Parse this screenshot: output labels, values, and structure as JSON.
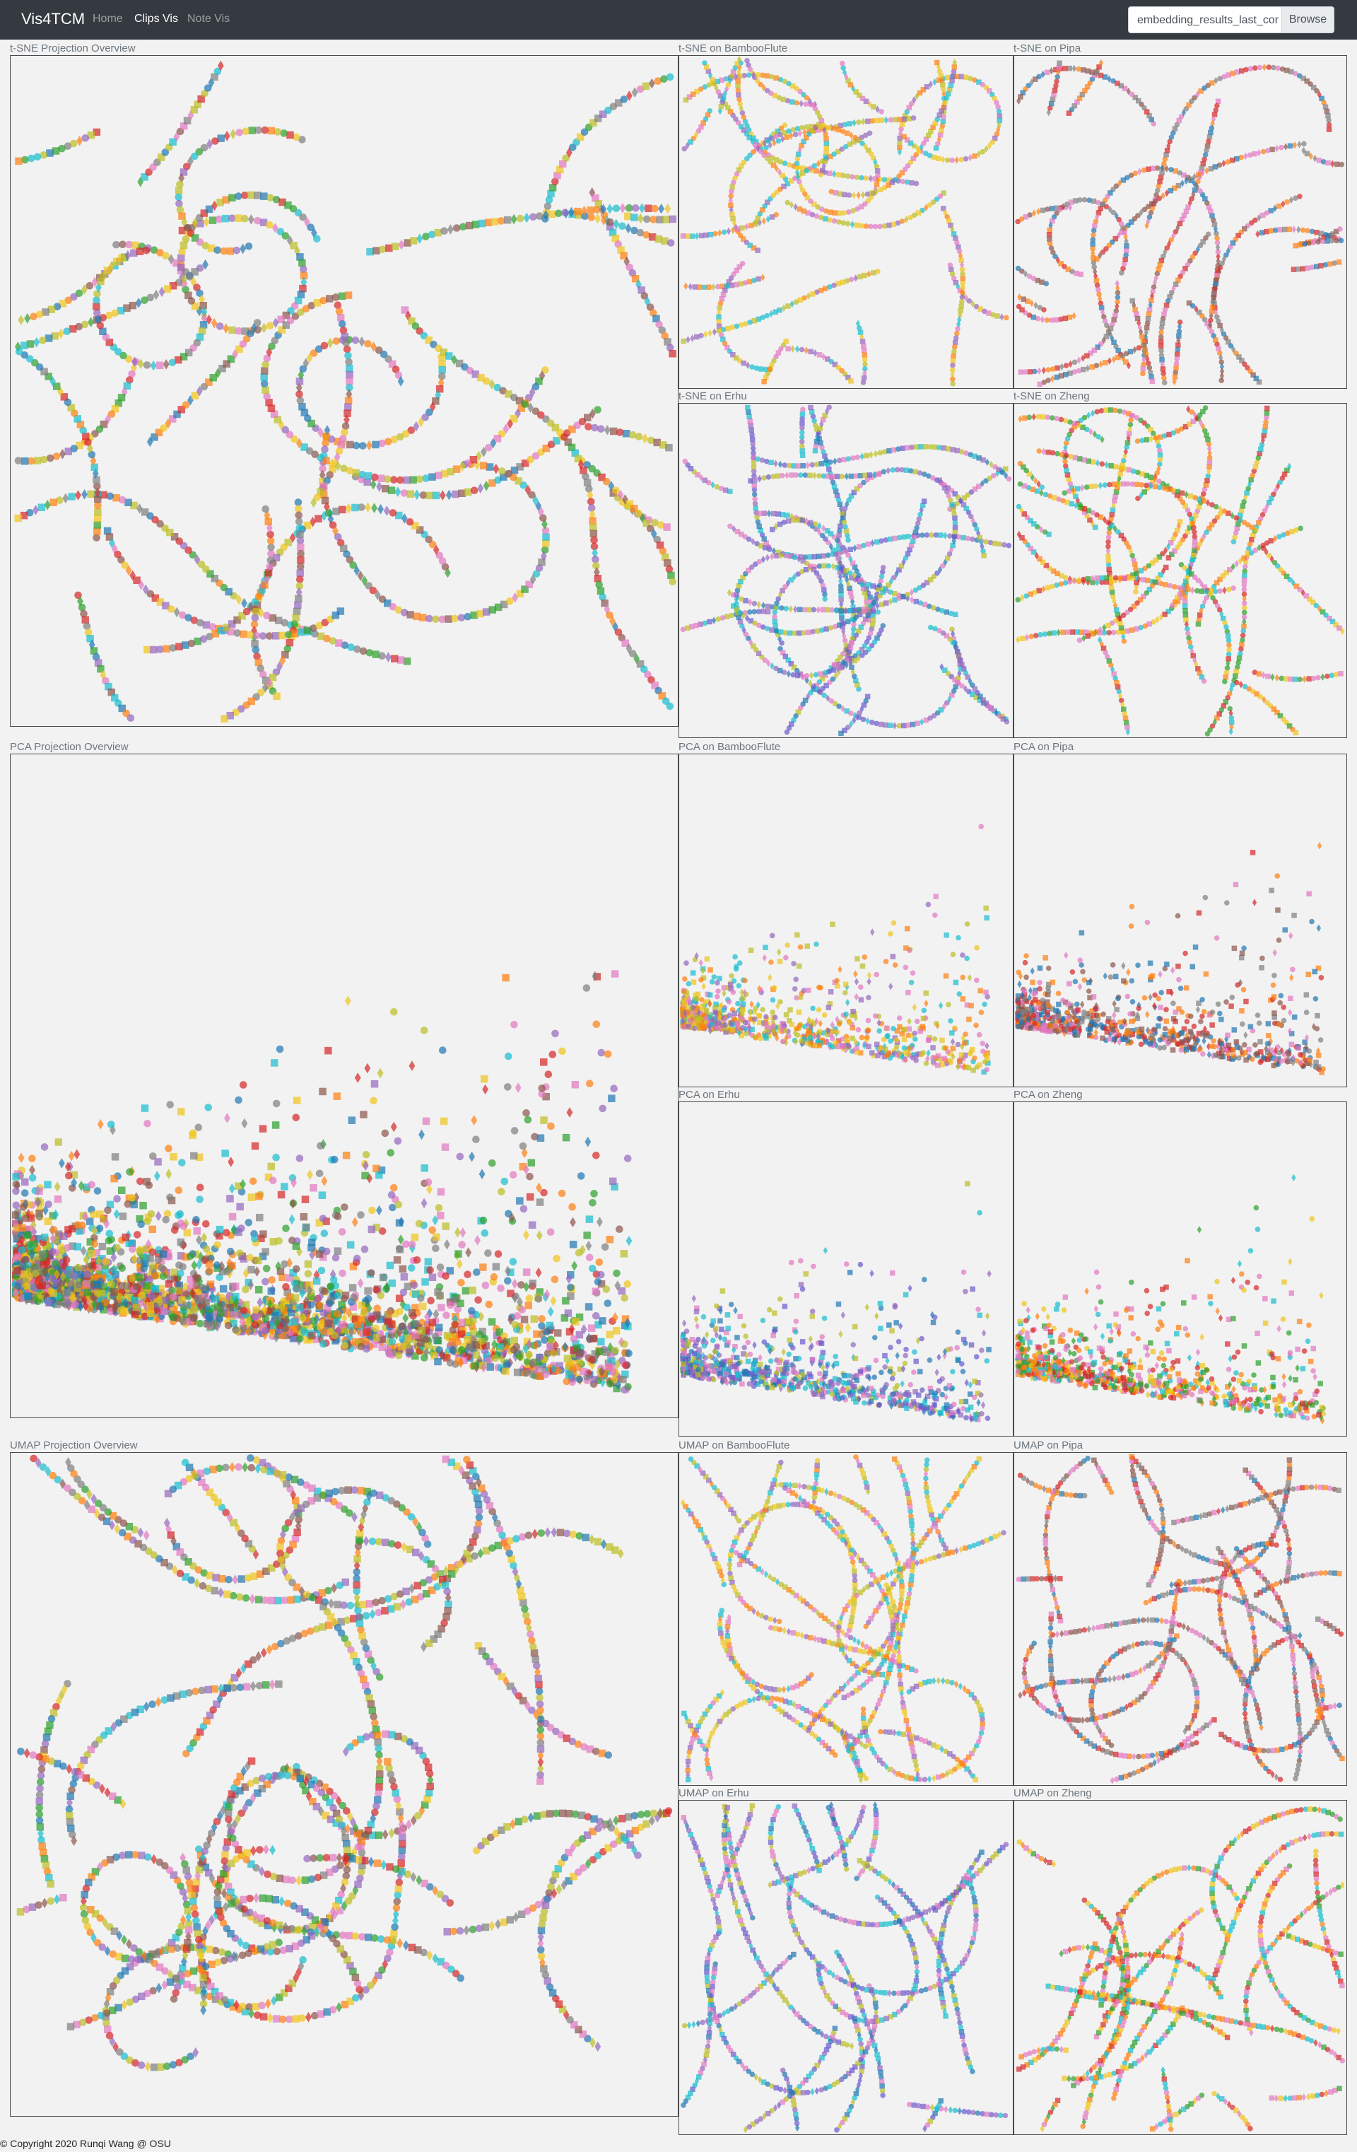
{
  "navbar": {
    "brand": "Vis4TCM",
    "links": [
      "Home",
      "Clips Vis",
      "Note Vis"
    ],
    "active_link": "Clips Vis"
  },
  "file_input": {
    "filename": "embedding_results_last_conv",
    "browse_label": "Browse"
  },
  "panels": [
    {
      "title": "t-SNE Projection Overview",
      "method": "tsne",
      "instrument": "all"
    },
    {
      "title": "t-SNE on BambooFlute",
      "method": "tsne",
      "instrument": "BambooFlute"
    },
    {
      "title": "t-SNE on Pipa",
      "method": "tsne",
      "instrument": "Pipa"
    },
    {
      "title": "t-SNE on Erhu",
      "method": "tsne",
      "instrument": "Erhu"
    },
    {
      "title": "t-SNE on Zheng",
      "method": "tsne",
      "instrument": "Zheng"
    },
    {
      "title": "PCA Projection Overview",
      "method": "pca",
      "instrument": "all"
    },
    {
      "title": "PCA on BambooFlute",
      "method": "pca",
      "instrument": "BambooFlute"
    },
    {
      "title": "PCA on Pipa",
      "method": "pca",
      "instrument": "Pipa"
    },
    {
      "title": "PCA on Erhu",
      "method": "pca",
      "instrument": "Erhu"
    },
    {
      "title": "PCA on Zheng",
      "method": "pca",
      "instrument": "Zheng"
    },
    {
      "title": "UMAP Projection Overview",
      "method": "umap",
      "instrument": "all"
    },
    {
      "title": "UMAP on BambooFlute",
      "method": "umap",
      "instrument": "BambooFlute"
    },
    {
      "title": "UMAP on Pipa",
      "method": "umap",
      "instrument": "Pipa"
    },
    {
      "title": "UMAP on Erhu",
      "method": "umap",
      "instrument": "Erhu"
    },
    {
      "title": "UMAP on Zheng",
      "method": "umap",
      "instrument": "Zheng"
    }
  ],
  "colors": {
    "navbar": "#343a40",
    "panel_border": "#4a4a4a",
    "background": "#f2f2f2",
    "point_palette": [
      "#e377c2",
      "#bcbd22",
      "#1f77b4",
      "#ff7f0e",
      "#2ca02c",
      "#d62728",
      "#9467bd",
      "#8c564b",
      "#17becf",
      "#f0c419",
      "#7f7f7f"
    ]
  },
  "footer": {
    "copyright": "© Copyright 2020 Runqi Wang @ OSU"
  }
}
